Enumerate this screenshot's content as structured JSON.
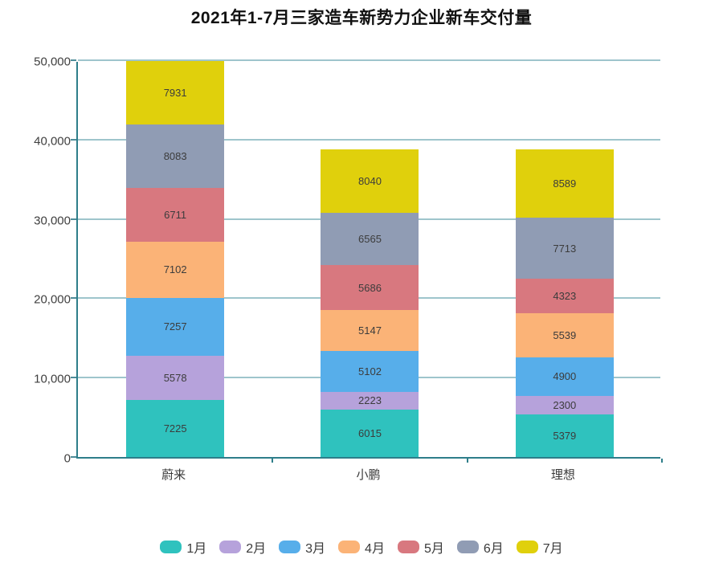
{
  "title": "2021年1-7月三家造车新势力企业新车交付量",
  "chart_data": {
    "type": "bar",
    "stacked": true,
    "title": "2021年1-7月三家造车新势力企业新车交付量",
    "categories": [
      "蔚来",
      "小鹏",
      "理想"
    ],
    "series": [
      {
        "name": "1月",
        "color": "#2fc2be",
        "values": [
          7225,
          6015,
          5379
        ]
      },
      {
        "name": "2月",
        "color": "#b6a2db",
        "values": [
          5578,
          2223,
          2300
        ]
      },
      {
        "name": "3月",
        "color": "#57aeea",
        "values": [
          7257,
          5102,
          4900
        ]
      },
      {
        "name": "4月",
        "color": "#fbb377",
        "values": [
          7102,
          5147,
          5539
        ]
      },
      {
        "name": "5月",
        "color": "#d8787f",
        "values": [
          6711,
          5686,
          4323
        ]
      },
      {
        "name": "6月",
        "color": "#909cb4",
        "values": [
          8083,
          6565,
          7713
        ]
      },
      {
        "name": "7月",
        "color": "#e0d00c",
        "values": [
          7931,
          8040,
          8589
        ]
      }
    ],
    "xlabel": "",
    "ylabel": "",
    "ylim": [
      0,
      50000
    ],
    "ytick_step": 10000,
    "ytick_labels": [
      "0",
      "10,000",
      "20,000",
      "30,000",
      "40,000",
      "50,000"
    ],
    "grid": true,
    "legend_position": "bottom",
    "value_labels": "inside"
  },
  "colors": {
    "axis": "#2e7e8a",
    "gridline": "#9ec5cc",
    "label_text": "#3c3c3c",
    "title_text": "#111111"
  }
}
